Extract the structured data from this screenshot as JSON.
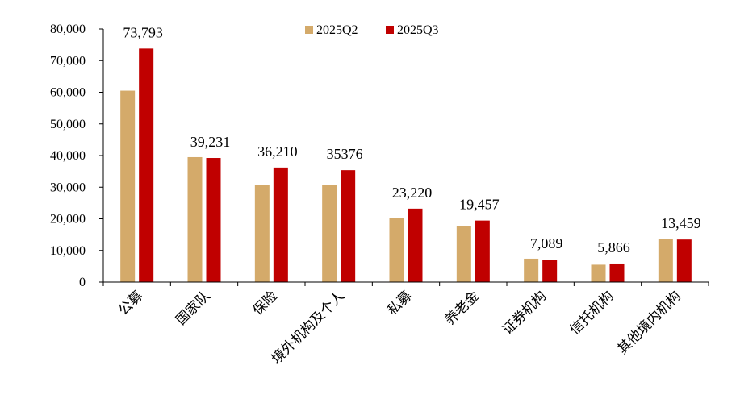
{
  "chart_data": {
    "type": "bar",
    "title": "",
    "xlabel": "",
    "ylabel": "",
    "ylim": [
      0,
      80000
    ],
    "yticks": [
      "0",
      "10,000",
      "20,000",
      "30,000",
      "40,000",
      "50,000",
      "60,000",
      "70,000",
      "80,000"
    ],
    "ytick_values": [
      0,
      10000,
      20000,
      30000,
      40000,
      50000,
      60000,
      70000,
      80000
    ],
    "grid": false,
    "legend_position": "top-center",
    "categories": [
      "公募",
      "国家队",
      "保险",
      "境外机构及个人",
      "私募",
      "养老金",
      "证券机构",
      "信托机构",
      "其他境内机构"
    ],
    "series": [
      {
        "name": "2025Q2",
        "color": "#D4AA6A",
        "values": [
          60500,
          39500,
          30800,
          30800,
          20200,
          17800,
          7400,
          5500,
          13500
        ]
      },
      {
        "name": "2025Q3",
        "color": "#C00000",
        "values": [
          73793,
          39231,
          36210,
          35376,
          23220,
          19457,
          7089,
          5866,
          13459
        ]
      }
    ],
    "data_labels": [
      "73,793",
      "39,231",
      "36,210",
      "35376",
      "23,220",
      "19,457",
      "7,089",
      "5,866",
      "13,459"
    ]
  }
}
